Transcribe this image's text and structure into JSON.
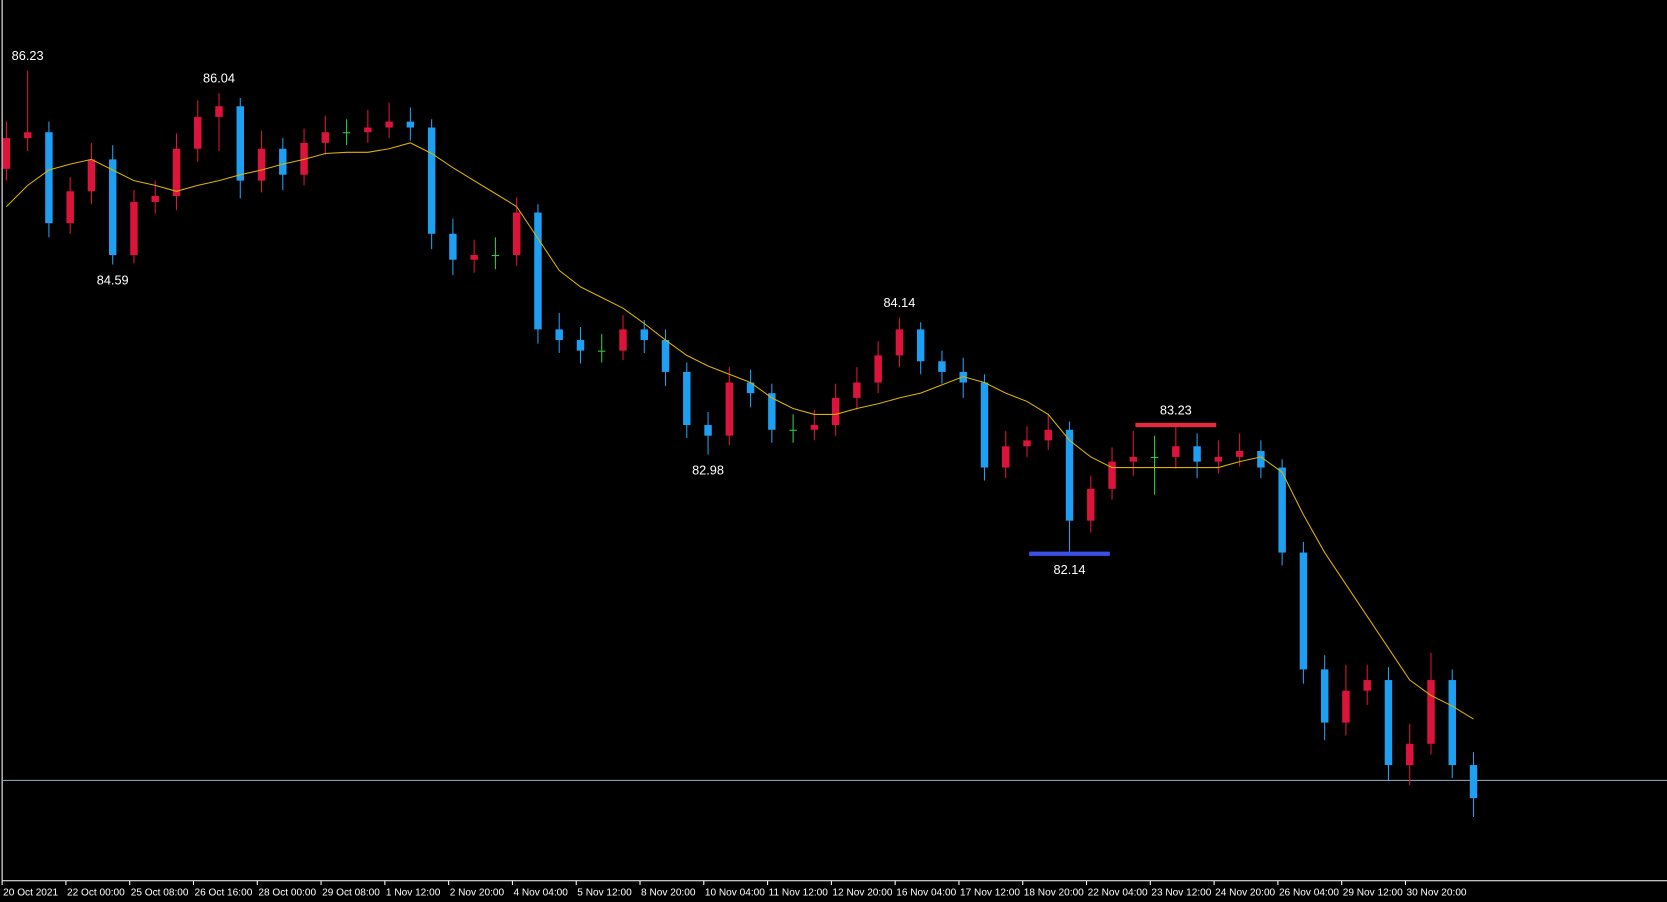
{
  "chart_data": {
    "type": "candlestick",
    "categories": [
      "20 Oct 2021",
      null,
      null,
      "22 Oct 00:00",
      null,
      null,
      "25 Oct 08:00",
      null,
      null,
      "26 Oct 16:00",
      null,
      null,
      "28 Oct 00:00",
      null,
      null,
      "29 Oct 08:00",
      null,
      null,
      "1 Nov 12:00",
      null,
      null,
      "2 Nov 20:00",
      null,
      null,
      "4 Nov 04:00",
      null,
      null,
      "5 Nov 12:00",
      null,
      null,
      "8 Nov 20:00",
      null,
      null,
      "10 Nov 04:00",
      null,
      null,
      "11 Nov 12:00",
      null,
      null,
      "12 Nov 20:00",
      null,
      null,
      "16 Nov 04:00",
      null,
      null,
      "17 Nov 12:00",
      null,
      null,
      "18 Nov 20:00",
      null,
      null,
      "22 Nov 04:00",
      null,
      null,
      "23 Nov 12:00",
      null,
      null,
      "24 Nov 20:00",
      null,
      null,
      "26 Nov 04:00",
      null,
      null,
      "29 Nov 12:00",
      null,
      null,
      "30 Nov 20:00",
      null,
      null,
      null
    ],
    "open": [
      85.4,
      85.66,
      85.71,
      84.94,
      85.21,
      85.48,
      84.67,
      85.12,
      85.17,
      85.57,
      85.84,
      85.93,
      85.3,
      85.57,
      85.35,
      85.62,
      85.71,
      85.71,
      85.75,
      85.8,
      85.75,
      84.85,
      84.63,
      84.67,
      84.67,
      85.03,
      84.04,
      83.95,
      83.86,
      83.86,
      84.04,
      83.95,
      83.68,
      83.23,
      83.14,
      83.59,
      83.5,
      83.19,
      83.19,
      83.23,
      83.46,
      83.59,
      83.82,
      84.04,
      83.77,
      83.68,
      83.59,
      82.87,
      83.05,
      83.1,
      83.19,
      82.42,
      82.69,
      82.92,
      82.96,
      82.96,
      83.05,
      82.92,
      82.96,
      83.01,
      82.87,
      82.15,
      81.16,
      80.71,
      80.98,
      81.07,
      80.35,
      80.53,
      81.07,
      80.35
    ],
    "high": [
      85.8,
      86.23,
      85.8,
      85.33,
      85.62,
      85.6,
      85.22,
      85.3,
      85.7,
      85.98,
      86.04,
      86.0,
      85.72,
      85.66,
      85.74,
      85.85,
      85.82,
      85.9,
      85.96,
      85.92,
      85.82,
      84.98,
      84.8,
      84.82,
      85.16,
      85.1,
      84.18,
      84.06,
      84.0,
      84.16,
      84.12,
      84.04,
      83.76,
      83.34,
      83.72,
      83.7,
      83.58,
      83.32,
      83.36,
      83.58,
      83.72,
      83.94,
      84.14,
      84.1,
      83.86,
      83.8,
      83.66,
      83.18,
      83.22,
      83.32,
      83.26,
      82.8,
      83.04,
      83.18,
      83.14,
      83.23,
      83.16,
      83.1,
      83.16,
      83.1,
      82.94,
      82.24,
      81.28,
      81.2,
      81.2,
      81.18,
      80.7,
      81.3,
      81.16,
      80.46
    ],
    "low": [
      85.3,
      85.55,
      84.82,
      84.85,
      85.1,
      84.59,
      84.6,
      85.02,
      85.05,
      85.46,
      85.55,
      85.15,
      85.2,
      85.22,
      85.26,
      85.52,
      85.6,
      85.62,
      85.66,
      85.64,
      84.72,
      84.5,
      84.52,
      84.55,
      84.58,
      83.92,
      83.84,
      83.75,
      83.76,
      83.78,
      83.84,
      83.56,
      83.12,
      82.98,
      83.06,
      83.38,
      83.08,
      83.08,
      83.1,
      83.14,
      83.36,
      83.5,
      83.72,
      83.66,
      83.58,
      83.46,
      82.76,
      82.78,
      82.96,
      83.02,
      82.14,
      82.32,
      82.6,
      82.8,
      82.64,
      82.86,
      82.78,
      82.82,
      82.88,
      82.78,
      82.04,
      81.04,
      80.56,
      80.6,
      80.86,
      80.22,
      80.18,
      80.44,
      80.24,
      79.91
    ],
    "close": [
      85.66,
      85.71,
      84.94,
      85.21,
      85.48,
      84.67,
      85.12,
      85.17,
      85.57,
      85.84,
      85.93,
      85.3,
      85.57,
      85.35,
      85.62,
      85.71,
      85.71,
      85.75,
      85.8,
      85.75,
      84.85,
      84.63,
      84.67,
      84.67,
      85.03,
      84.04,
      83.95,
      83.86,
      83.86,
      84.04,
      83.95,
      83.68,
      83.23,
      83.14,
      83.59,
      83.5,
      83.19,
      83.19,
      83.23,
      83.46,
      83.59,
      83.82,
      84.04,
      83.77,
      83.68,
      83.59,
      82.87,
      83.05,
      83.1,
      83.19,
      82.42,
      82.69,
      82.92,
      82.96,
      82.96,
      83.05,
      82.92,
      82.96,
      83.01,
      82.87,
      82.15,
      81.16,
      80.71,
      80.98,
      81.07,
      80.35,
      80.53,
      81.07,
      80.35,
      80.07
    ],
    "up_color": "#dc143c",
    "down_color": "#1e9ff2",
    "doji_color": "#2ecc40",
    "ylim": [
      79.37,
      86.83
    ],
    "ma": {
      "color": "#d9b300",
      "values": [
        85.08,
        85.26,
        85.39,
        85.44,
        85.48,
        85.39,
        85.3,
        85.26,
        85.21,
        85.26,
        85.3,
        85.35,
        85.39,
        85.44,
        85.48,
        85.53,
        85.54,
        85.54,
        85.57,
        85.62,
        85.53,
        85.41,
        85.3,
        85.19,
        85.08,
        84.81,
        84.54,
        84.4,
        84.31,
        84.22,
        84.09,
        83.95,
        83.82,
        83.73,
        83.66,
        83.59,
        83.46,
        83.37,
        83.32,
        83.32,
        83.37,
        83.41,
        83.46,
        83.5,
        83.57,
        83.64,
        83.59,
        83.5,
        83.43,
        83.32,
        83.1,
        82.96,
        82.87,
        82.87,
        82.87,
        82.87,
        82.87,
        82.87,
        82.92,
        82.96,
        82.83,
        82.47,
        82.15,
        81.88,
        81.61,
        81.34,
        81.07,
        80.94,
        80.85,
        80.74
      ]
    },
    "labeled_highs": [
      1,
      10,
      42,
      55
    ],
    "labeled_lows": [
      5,
      33,
      50
    ],
    "high_marker": {
      "index": 55,
      "color": "#e8283c"
    },
    "low_marker": {
      "index": 50,
      "color": "#3c50e6"
    },
    "price_line": {
      "value": 80.22,
      "color": "#7f9bb3"
    }
  }
}
